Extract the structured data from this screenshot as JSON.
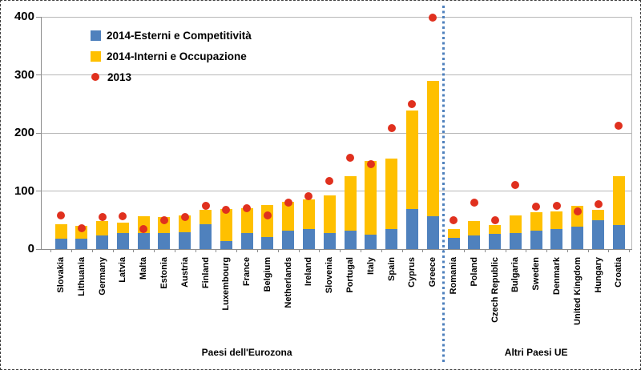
{
  "chart_data": {
    "type": "bar",
    "stacked": true,
    "points_series": "2013",
    "ylim": [
      0,
      400
    ],
    "yticks": [
      0,
      100,
      200,
      300,
      400
    ],
    "grid": true,
    "legend_position": "top-left-inside",
    "legend": [
      {
        "label": "2014-Esterni e Competitività",
        "marker": "square",
        "color": "#4F81BD"
      },
      {
        "label": "2014-Interni e Occupazione",
        "marker": "square",
        "color": "#FFC000"
      },
      {
        "label": "2013",
        "marker": "circle",
        "color": "#E0301E"
      }
    ],
    "series": [
      {
        "name": "2014-Esterni e Competitività",
        "type": "bar-segment",
        "color": "#4F81BD"
      },
      {
        "name": "2014-Interni e Occupazione",
        "type": "bar-segment",
        "color": "#FFC000"
      },
      {
        "name": "2013",
        "type": "point",
        "color": "#E0301E"
      }
    ],
    "groups": [
      {
        "label": "Paesi dell'Eurozona",
        "countries": [
          {
            "name": "Slovakia",
            "esterni2014": 18,
            "interni2014": 25,
            "v2013": 58
          },
          {
            "name": "Lithuania",
            "esterni2014": 18,
            "interni2014": 22,
            "v2013": 36
          },
          {
            "name": "Germany",
            "esterni2014": 23,
            "interni2014": 25,
            "v2013": 55
          },
          {
            "name": "Latvia",
            "esterni2014": 28,
            "interni2014": 18,
            "v2013": 56
          },
          {
            "name": "Malta",
            "esterni2014": 27,
            "interni2014": 30,
            "v2013": 35
          },
          {
            "name": "Estonia",
            "esterni2014": 27,
            "interni2014": 28,
            "v2013": 50
          },
          {
            "name": "Austria",
            "esterni2014": 29,
            "interni2014": 29,
            "v2013": 55
          },
          {
            "name": "Finland",
            "esterni2014": 43,
            "interni2014": 24,
            "v2013": 75
          },
          {
            "name": "Luxembourg",
            "esterni2014": 14,
            "interni2014": 55,
            "v2013": 67
          },
          {
            "name": "France",
            "esterni2014": 28,
            "interni2014": 43,
            "v2013": 70
          },
          {
            "name": "Belgium",
            "esterni2014": 21,
            "interni2014": 55,
            "v2013": 58
          },
          {
            "name": "Netherlands",
            "esterni2014": 32,
            "interni2014": 50,
            "v2013": 80
          },
          {
            "name": "Ireland",
            "esterni2014": 34,
            "interni2014": 51,
            "v2013": 91
          },
          {
            "name": "Slovenia",
            "esterni2014": 28,
            "interni2014": 64,
            "v2013": 117
          },
          {
            "name": "Portugal",
            "esterni2014": 32,
            "interni2014": 94,
            "v2013": 157
          },
          {
            "name": "Italy",
            "esterni2014": 25,
            "interni2014": 127,
            "v2013": 146
          },
          {
            "name": "Spain",
            "esterni2014": 34,
            "interni2014": 122,
            "v2013": 208
          },
          {
            "name": "Cyprus",
            "esterni2014": 69,
            "interni2014": 169,
            "v2013": 249
          },
          {
            "name": "Greece",
            "esterni2014": 57,
            "interni2014": 232,
            "v2013": 398
          }
        ]
      },
      {
        "label": "Altri Paesi UE",
        "countries": [
          {
            "name": "Romania",
            "esterni2014": 19,
            "interni2014": 15,
            "v2013": 49
          },
          {
            "name": "Poland",
            "esterni2014": 23,
            "interni2014": 25,
            "v2013": 80
          },
          {
            "name": "Czech Republic",
            "esterni2014": 26,
            "interni2014": 16,
            "v2013": 50
          },
          {
            "name": "Bulgaria",
            "esterni2014": 28,
            "interni2014": 30,
            "v2013": 111
          },
          {
            "name": "Sweden",
            "esterni2014": 32,
            "interni2014": 31,
            "v2013": 73
          },
          {
            "name": "Denmark",
            "esterni2014": 34,
            "interni2014": 31,
            "v2013": 74
          },
          {
            "name": "United Kingdom",
            "esterni2014": 38,
            "interni2014": 37,
            "v2013": 65
          },
          {
            "name": "Hungary",
            "esterni2014": 50,
            "interni2014": 18,
            "v2013": 77
          },
          {
            "name": "Croatia",
            "esterni2014": 41,
            "interni2014": 85,
            "v2013": 212
          }
        ]
      }
    ],
    "colors": {
      "esterni2014": "#4F81BD",
      "interni2014": "#FFC000",
      "dot2013": "#E0301E",
      "gridline": "#B7B7B7",
      "axis": "#8C8C8C",
      "separator": "#4F81BD",
      "frame_border": "#3C3C3C",
      "background": "#FFFFFF"
    }
  }
}
